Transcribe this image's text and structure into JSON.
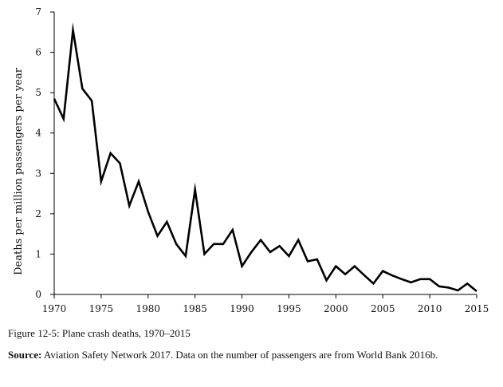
{
  "chart_data": {
    "type": "line",
    "title": "",
    "xlabel": "",
    "ylabel": "Deaths per million passengers per year",
    "xlim": [
      1970,
      2015
    ],
    "ylim": [
      0,
      7
    ],
    "xticks": [
      1970,
      1975,
      1980,
      1985,
      1990,
      1995,
      2000,
      2005,
      2010,
      2015
    ],
    "yticks": [
      0,
      1,
      2,
      3,
      4,
      5,
      6,
      7
    ],
    "grid": false,
    "legend": "none",
    "line_color": "#000000",
    "series": [
      {
        "x": [
          1970,
          1971,
          1972,
          1973,
          1974,
          1975,
          1976,
          1977,
          1978,
          1979,
          1980,
          1981,
          1982,
          1983,
          1984,
          1985,
          1986,
          1987,
          1988,
          1989,
          1990,
          1991,
          1992,
          1993,
          1994,
          1995,
          1996,
          1997,
          1998,
          1999,
          2000,
          2001,
          2002,
          2003,
          2004,
          2005,
          2006,
          2007,
          2008,
          2009,
          2010,
          2011,
          2012,
          2013,
          2014,
          2015
        ],
        "values": [
          4.85,
          4.35,
          6.55,
          5.1,
          4.8,
          2.8,
          3.5,
          3.25,
          2.2,
          2.8,
          2.05,
          1.45,
          1.8,
          1.25,
          0.95,
          2.6,
          1.0,
          1.25,
          1.25,
          1.6,
          0.7,
          1.05,
          1.35,
          1.05,
          1.2,
          0.95,
          1.35,
          0.82,
          0.87,
          0.35,
          0.7,
          0.5,
          0.7,
          0.48,
          0.27,
          0.58,
          0.47,
          0.38,
          0.3,
          0.38,
          0.38,
          0.2,
          0.17,
          0.1,
          0.27,
          0.08
        ]
      }
    ]
  },
  "caption": {
    "figure_label": "Figure 12-5: Plane crash deaths, 1970–2015",
    "source_label": "Source:",
    "source_text": " Aviation Safety Network 2017. Data on the number of passengers are from World Bank 2016b."
  }
}
